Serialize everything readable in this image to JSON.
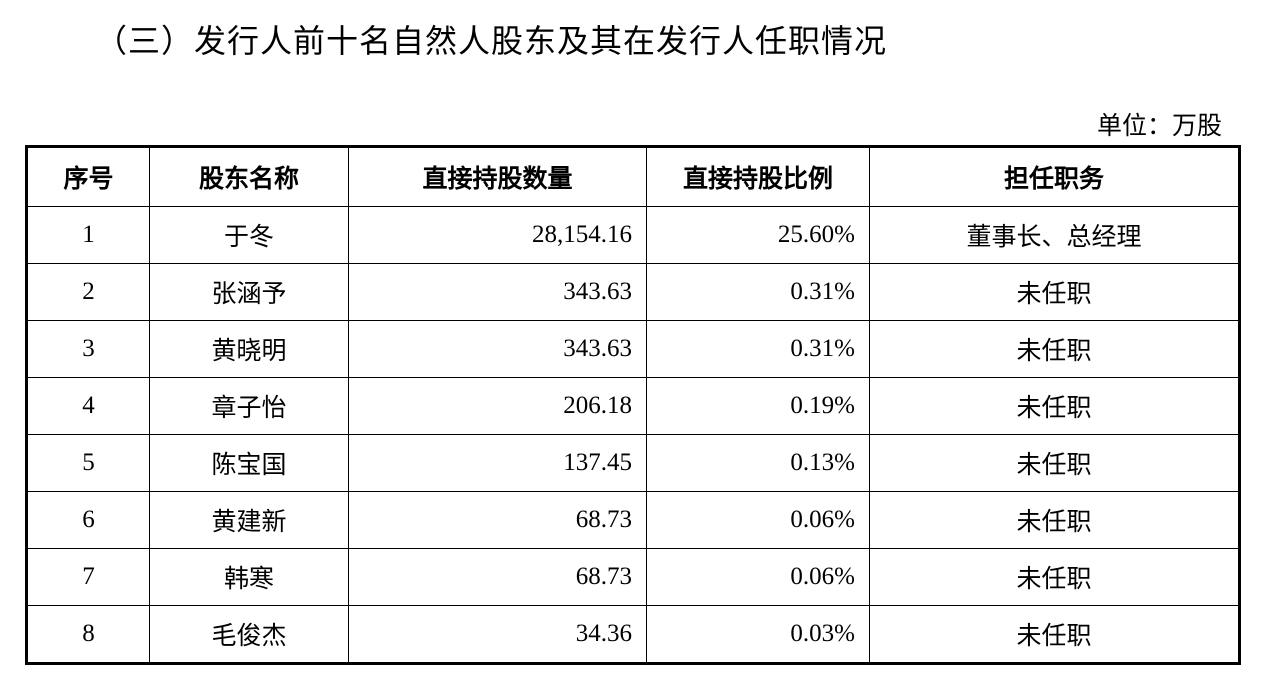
{
  "header": {
    "title": "（三）发行人前十名自然人股东及其在发行人任职情况",
    "unit": "单位：万股"
  },
  "table": {
    "columns": [
      "序号",
      "股东名称",
      "直接持股数量",
      "直接持股比例",
      "担任职务"
    ],
    "rows": [
      [
        "1",
        "于冬",
        "28,154.16",
        "25.60%",
        "董事长、总经理"
      ],
      [
        "2",
        "张涵予",
        "343.63",
        "0.31%",
        "未任职"
      ],
      [
        "3",
        "黄晓明",
        "343.63",
        "0.31%",
        "未任职"
      ],
      [
        "4",
        "章子怡",
        "206.18",
        "0.19%",
        "未任职"
      ],
      [
        "5",
        "陈宝国",
        "137.45",
        "0.13%",
        "未任职"
      ],
      [
        "6",
        "黄建新",
        "68.73",
        "0.06%",
        "未任职"
      ],
      [
        "7",
        "韩寒",
        "68.73",
        "0.06%",
        "未任职"
      ],
      [
        "8",
        "毛俊杰",
        "34.36",
        "0.03%",
        "未任职"
      ]
    ]
  }
}
